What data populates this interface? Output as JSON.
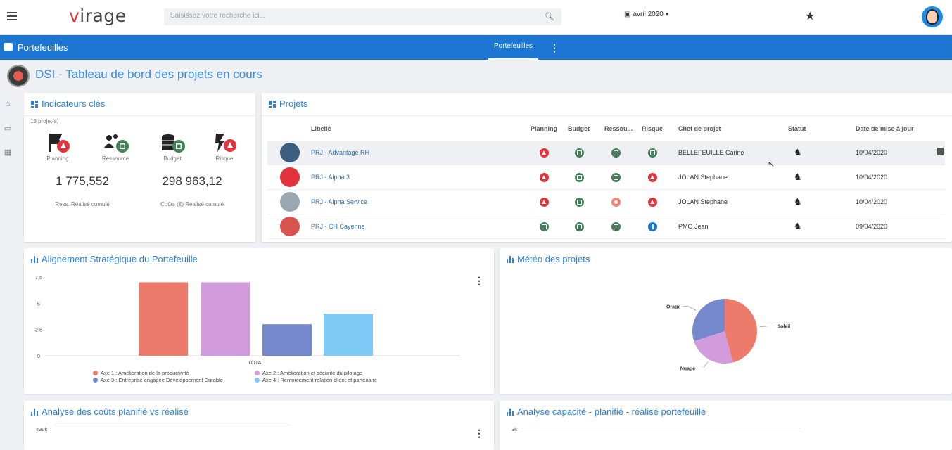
{
  "header": {
    "logo": {
      "v": "v",
      "rest": "irage"
    },
    "search_placeholder": "Saisissez votre recherche ici...",
    "date": "avril 2020"
  },
  "bluebar": {
    "title": "Portefeuilles",
    "tab": "Portefeuilles"
  },
  "page_title": "DSI - Tableau de bord des projets en cours",
  "indicators": {
    "title": "Indicateurs clés",
    "count": "13 projet(s)",
    "items": [
      {
        "label": "Planning",
        "status": "red"
      },
      {
        "label": "Ressource",
        "status": "green"
      },
      {
        "label": "Budget",
        "status": "green"
      },
      {
        "label": "Risque",
        "status": "red"
      }
    ],
    "values": [
      {
        "value": "1 775,552",
        "caption": "Ress. Réalisé cumulé"
      },
      {
        "value": "298 963,12",
        "caption": "Coûts (€) Réalisé cumulé"
      }
    ]
  },
  "projects": {
    "title": "Projets",
    "headers": [
      "Libellé",
      "Planning",
      "Budget",
      "Ressou...",
      "Risque",
      "Chef de projet",
      "Statut",
      "Date de mise à jour"
    ],
    "rows": [
      {
        "libelle": "PRJ - Advantage RH",
        "planning": "red",
        "budget": "green",
        "ressource": "green",
        "risque": "green",
        "chef": "BELLEFEUILLE Carine",
        "statut": "♞",
        "date": "10/04/2020",
        "avatar_color": "#3d5f7f",
        "highlight": true
      },
      {
        "libelle": "PRJ - Alpha 3",
        "planning": "red",
        "budget": "green",
        "ressource": "green",
        "risque": "red",
        "chef": "JOLAN Stephane",
        "statut": "♞",
        "date": "10/04/2020",
        "avatar_color": "#e2323b",
        "highlight": false
      },
      {
        "libelle": "PRJ - Alpha Service",
        "planning": "red",
        "budget": "green",
        "ressource": "orange",
        "risque": "red",
        "chef": "JOLAN Stephane",
        "statut": "♞",
        "date": "10/04/2020",
        "avatar_color": "#9aa7b1",
        "highlight": false
      },
      {
        "libelle": "PRJ - CH Cayenne",
        "planning": "green",
        "budget": "green",
        "ressource": "green",
        "risque": "blue",
        "chef": "PMO Jean",
        "statut": "♞",
        "date": "09/04/2020",
        "avatar_color": "#d9534f",
        "highlight": false
      }
    ]
  },
  "alignment": {
    "title": "Alignement Stratégique du Portefeuille",
    "legend": [
      {
        "label": "Axe 1 : Amélioration de la productivité",
        "color": "#ec7b6c"
      },
      {
        "label": "Axe 2 : Amélioration et sécurité du pilotage",
        "color": "#d19bdc"
      },
      {
        "label": "Axe 3 : Entreprise engagée Développement Durable",
        "color": "#7488cb"
      },
      {
        "label": "Axe 4 : Renforcement relation client et partenaire",
        "color": "#7dcaf5"
      }
    ]
  },
  "meteo": {
    "title": "Météo des projets"
  },
  "couts": {
    "title": "Analyse des coûts planifié vs réalisé",
    "tick": "430k"
  },
  "capacite": {
    "title": "Analyse capacité - planifié - réalisé portefeuille",
    "tick": "3k"
  },
  "chart_data": [
    {
      "type": "bar",
      "categories": [
        "TOTAL"
      ],
      "xlabel": "",
      "ylabel": "",
      "ylim": [
        0,
        7.5
      ],
      "yticks": [
        "0",
        "2.5",
        "5",
        "7.5"
      ],
      "series": [
        {
          "name": "Axe 1 : Amélioration de la productivité",
          "values": [
            7
          ],
          "color": "#ec7b6c"
        },
        {
          "name": "Axe 2 : Amélioration et sécurité du pilotage",
          "values": [
            7
          ],
          "color": "#d19bdc"
        },
        {
          "name": "Axe 3 : Entreprise engagée Développement Durable",
          "values": [
            3
          ],
          "color": "#7488cb"
        },
        {
          "name": "Axe 4 : Renforcement relation client et partenaire",
          "values": [
            4
          ],
          "color": "#7dcaf5"
        }
      ],
      "legend": "bottom",
      "grid": false
    },
    {
      "type": "pie",
      "labels": [
        "Soleil",
        "Nuage",
        "Orage"
      ],
      "values": [
        46,
        24,
        30
      ],
      "colors": [
        "#ec7b6c",
        "#d19bdc",
        "#7488cb"
      ]
    }
  ]
}
